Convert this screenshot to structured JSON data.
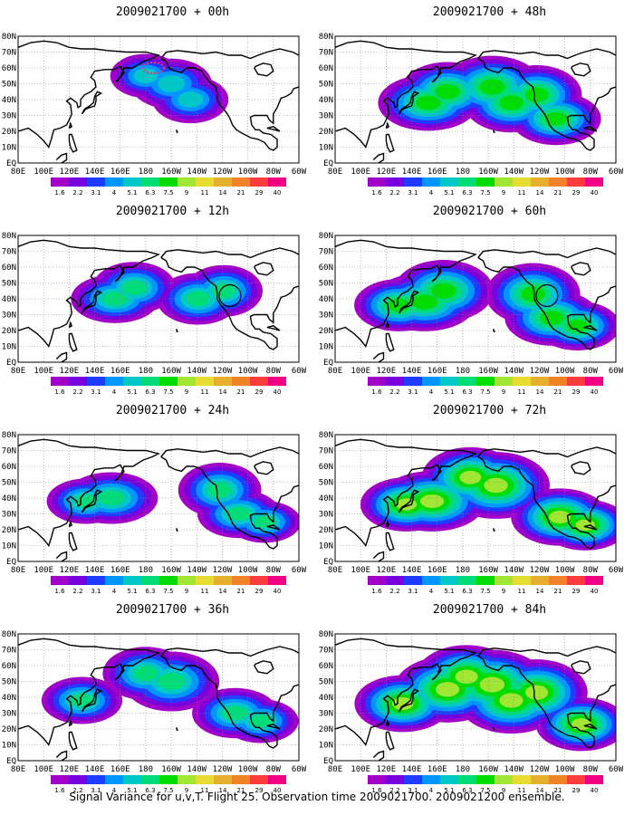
{
  "figure": {
    "caption": "Signal Variance for u,v,T. Flight 25. Observation time 2009021700. 2009021200 ensemble.",
    "colorbar_levels": [
      "1.6",
      "2.2",
      "3.1",
      "4",
      "5.1",
      "6.3",
      "7.5",
      "9",
      "11",
      "14",
      "21",
      "29",
      "40"
    ],
    "colorbar_colors": [
      "#a000c8",
      "#7800dc",
      "#1e3cff",
      "#0096ff",
      "#00c8c8",
      "#00dc78",
      "#00dc00",
      "#a0e632",
      "#e6dc32",
      "#e6af2d",
      "#f08228",
      "#fa3c3c",
      "#f00082"
    ],
    "lat_labels": [
      "80N",
      "70N",
      "60N",
      "50N",
      "40N",
      "30N",
      "20N",
      "10N",
      "EQ"
    ],
    "lon_labels": [
      "80E",
      "100E",
      "120E",
      "140E",
      "160E",
      "180",
      "160W",
      "140W",
      "120W",
      "100W",
      "80W",
      "60W"
    ]
  },
  "chart_data": [
    {
      "type": "heatmap",
      "title": "2009021700 + 00h",
      "field": "signal variance",
      "intensity": 0.35,
      "circled_region": false
    },
    {
      "type": "heatmap",
      "title": "2009021700 + 48h",
      "field": "signal variance",
      "intensity": 0.62,
      "circled_region": false
    },
    {
      "type": "heatmap",
      "title": "2009021700 + 12h",
      "field": "signal variance",
      "intensity": 0.45,
      "circled_region": true
    },
    {
      "type": "heatmap",
      "title": "2009021700 + 60h",
      "field": "signal variance",
      "intensity": 0.68,
      "circled_region": true
    },
    {
      "type": "heatmap",
      "title": "2009021700 + 24h",
      "field": "signal variance",
      "intensity": 0.52,
      "circled_region": false
    },
    {
      "type": "heatmap",
      "title": "2009021700 + 72h",
      "field": "signal variance",
      "intensity": 0.72,
      "circled_region": false
    },
    {
      "type": "heatmap",
      "title": "2009021700 + 36h",
      "field": "signal variance",
      "intensity": 0.56,
      "circled_region": false
    },
    {
      "type": "heatmap",
      "title": "2009021700 + 84h",
      "field": "signal variance",
      "intensity": 0.78,
      "circled_region": false
    }
  ]
}
